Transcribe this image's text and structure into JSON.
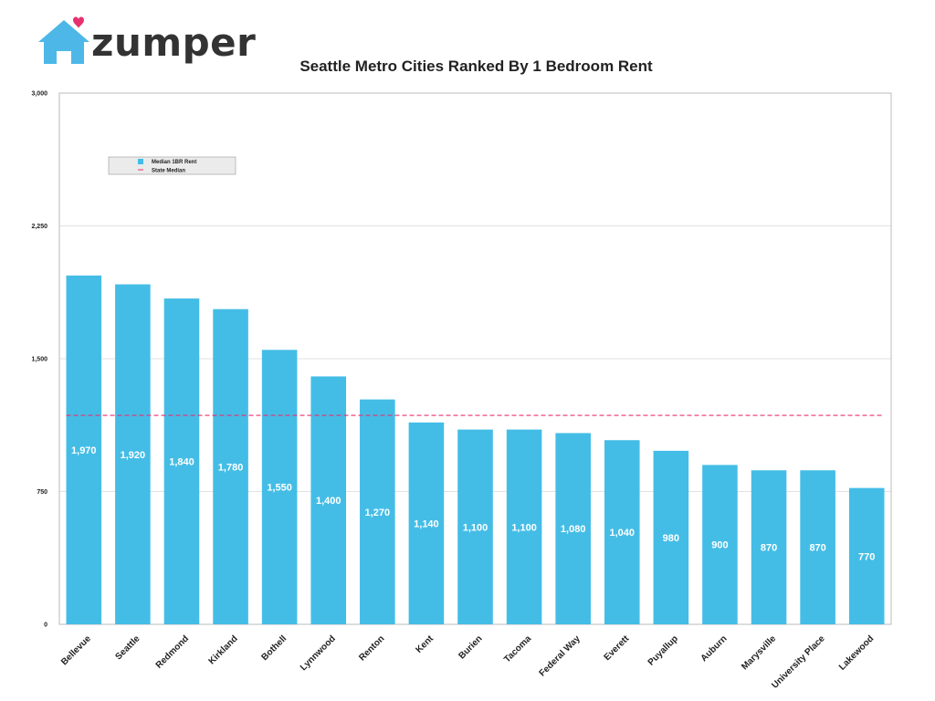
{
  "logo": {
    "text": "zumper",
    "color": "#4db8e8",
    "heart_color": "#e8306f",
    "icon": "house-icon"
  },
  "chart_data": {
    "type": "bar",
    "title": "Seattle Metro Cities Ranked By 1 Bedroom Rent",
    "categories": [
      "Bellevue",
      "Seattle",
      "Redmond",
      "Kirkland",
      "Bothell",
      "Lynnwood",
      "Renton",
      "Kent",
      "Burien",
      "Tacoma",
      "Federal Way",
      "Everett",
      "Puyallup",
      "Auburn",
      "Marysville",
      "University Place",
      "Lakewood"
    ],
    "series": [
      {
        "name": "Median 1BR Rent",
        "values": [
          1970,
          1920,
          1840,
          1780,
          1550,
          1400,
          1270,
          1140,
          1100,
          1100,
          1080,
          1040,
          980,
          900,
          870,
          870,
          770
        ],
        "color": "#44bde6"
      }
    ],
    "value_labels": [
      "1,970",
      "1,920",
      "1,840",
      "1,780",
      "1,550",
      "1,400",
      "1,270",
      "1,140",
      "1,100",
      "1,100",
      "1,080",
      "1,040",
      "980",
      "900",
      "870",
      "870",
      "770"
    ],
    "reference_line": {
      "name": "State Median",
      "value": 1180,
      "color": "#e8306f",
      "style": "dashed"
    },
    "ylim": [
      0,
      3000
    ],
    "yticks": [
      0,
      750,
      1500,
      2250,
      3000
    ],
    "ytick_labels": [
      "0",
      "750",
      "1,500",
      "2,250",
      "3,000"
    ],
    "grid": true,
    "legend": [
      "Median 1BR Rent",
      "State Median"
    ],
    "legend_position": "top-left"
  }
}
